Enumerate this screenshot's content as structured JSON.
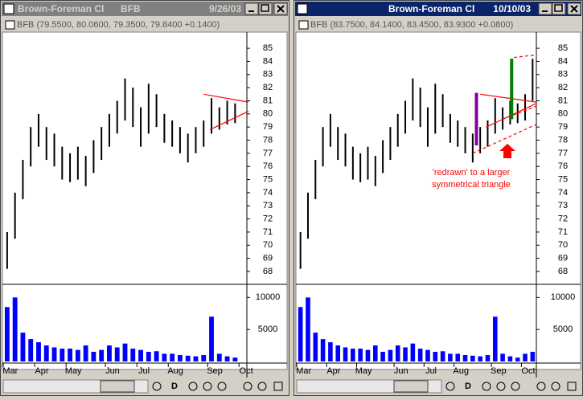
{
  "windows": [
    {
      "title": "Brown-Foreman Cl",
      "symbol": "BFB",
      "date": "9/26/03",
      "header": "BFB (79.5500, 80.0600, 79.3500, 79.8400 +0.1400)",
      "toolbar_button": "D"
    },
    {
      "title": "Brown-Foreman Cl",
      "date": "10/10/03",
      "header": "BFB (83.7500, 84.1400, 83.4500, 83.9300 +0.0800)",
      "toolbar_button": "D"
    }
  ],
  "chart_data": [
    {
      "type": "range-bar",
      "categories": [
        "Mar",
        null,
        null,
        null,
        "Apr",
        null,
        null,
        null,
        "May",
        null,
        null,
        null,
        null,
        "Jun",
        null,
        null,
        null,
        "Jul",
        null,
        null,
        null,
        "Aug",
        null,
        null,
        null,
        null,
        "Sep",
        null,
        null,
        null,
        "Oct"
      ],
      "high": [
        71,
        74,
        76.5,
        79,
        80,
        79,
        78.5,
        77.5,
        77,
        77.5,
        76.8,
        78,
        79,
        80,
        81,
        82.7,
        82,
        80.5,
        82.3,
        81.5,
        80,
        79.5,
        79,
        78.5,
        79,
        79.5,
        81.2,
        80.5,
        81,
        80.8,
        null
      ],
      "low": [
        68.2,
        70.5,
        73.5,
        76,
        77.5,
        76.5,
        76,
        75,
        74.8,
        75,
        74.5,
        75.5,
        76.5,
        77.5,
        78.5,
        79.5,
        79,
        77.5,
        78.5,
        79,
        77.8,
        77.5,
        77,
        76.3,
        77,
        77.5,
        78.5,
        78.8,
        79.2,
        79.3,
        null
      ],
      "volume": [
        8500,
        10000,
        4500,
        3500,
        3000,
        2500,
        2200,
        2000,
        2000,
        1800,
        2500,
        1500,
        1800,
        2500,
        2200,
        2800,
        2000,
        1800,
        1500,
        1600,
        1200,
        1200,
        1000,
        900,
        800,
        1000,
        7000,
        1200,
        800,
        600,
        null
      ],
      "color": "#000000",
      "volume_color": "#0000ff",
      "ylim": [
        67.14,
        86.23
      ],
      "yticks": [
        68,
        69,
        70,
        71,
        72,
        73,
        74,
        75,
        76,
        77,
        78,
        79,
        80,
        81,
        82,
        83,
        84,
        85
      ],
      "volume_ylim": [
        0,
        11800
      ],
      "volume_yticks": [
        5000,
        10000
      ],
      "trendlines": [
        {
          "x": [
            25,
            30.7
          ],
          "y": [
            81.5,
            80.9
          ],
          "color": "#ff0000",
          "dashed": false
        },
        {
          "x": [
            25.8,
            30.7
          ],
          "y": [
            78.8,
            80.2
          ],
          "color": "#ff0000",
          "dashed": false
        }
      ],
      "markers": []
    },
    {
      "type": "range-bar",
      "categories": [
        "Mar",
        null,
        null,
        null,
        "Apr",
        null,
        null,
        null,
        "May",
        null,
        null,
        null,
        null,
        "Jun",
        null,
        null,
        null,
        "Jul",
        null,
        null,
        null,
        "Aug",
        null,
        null,
        null,
        null,
        "Sep",
        null,
        null,
        null,
        "Oct",
        null
      ],
      "high": [
        71,
        74,
        76.5,
        79,
        80,
        79,
        78.5,
        77.5,
        77,
        77.5,
        76.8,
        78,
        79,
        80,
        81,
        82.7,
        82,
        80.5,
        82.3,
        81.5,
        80,
        79.5,
        79,
        78.5,
        79,
        79.5,
        81.2,
        80.5,
        81,
        80.8,
        81.5,
        84.2
      ],
      "low": [
        68.2,
        70.5,
        73.5,
        76,
        77.5,
        76.5,
        76,
        75,
        74.8,
        75,
        74.5,
        75.5,
        76.5,
        77.5,
        78.5,
        79.5,
        79,
        77.5,
        78.5,
        79,
        77.8,
        77.5,
        77,
        76.3,
        77,
        77.5,
        78.5,
        78.8,
        79.2,
        79.3,
        79.5,
        81
      ],
      "volume": [
        8500,
        10000,
        4500,
        3500,
        3000,
        2500,
        2200,
        2000,
        2000,
        1800,
        2500,
        1500,
        1800,
        2500,
        2200,
        2800,
        2000,
        1800,
        1500,
        1600,
        1200,
        1200,
        1000,
        900,
        800,
        1000,
        7000,
        1200,
        800,
        600,
        1200,
        1500
      ],
      "color": "#000000",
      "volume_color": "#0000ff",
      "ylim": [
        67.14,
        86.23
      ],
      "yticks": [
        68,
        69,
        70,
        71,
        72,
        73,
        74,
        75,
        76,
        77,
        78,
        79,
        80,
        81,
        82,
        83,
        84,
        85
      ],
      "volume_ylim": [
        0,
        11800
      ],
      "volume_yticks": [
        5000,
        10000
      ],
      "trendlines": [
        {
          "x": [
            24,
            31.5
          ],
          "y": [
            81.5,
            80.9
          ],
          "color": "#ff0000",
          "dashed": false
        },
        {
          "x": [
            24.8,
            31.5
          ],
          "y": [
            79,
            80.8
          ],
          "color": "#ff0000",
          "dashed": false
        },
        {
          "x": [
            23,
            31.5
          ],
          "y": [
            77,
            79.2
          ],
          "color": "#ff0000",
          "dashed": true
        },
        {
          "x": [
            28.5,
            31.5
          ],
          "y": [
            84.3,
            84.5
          ],
          "color": "#ff0000",
          "dashed": true
        },
        {
          "x": [
            27,
            31.5
          ],
          "y": [
            79.6,
            80.6
          ],
          "color": "#ff0000",
          "dashed": true
        }
      ],
      "markers": [
        {
          "x": 23.5,
          "low": 77.6,
          "high": 81.6,
          "color": "#8000a0"
        },
        {
          "x": 28.2,
          "low": 79.6,
          "high": 84.2,
          "color": "#008000"
        }
      ],
      "annotation": [
        "'redrawn' to a larger",
        "symmetrical triangle"
      ]
    }
  ]
}
